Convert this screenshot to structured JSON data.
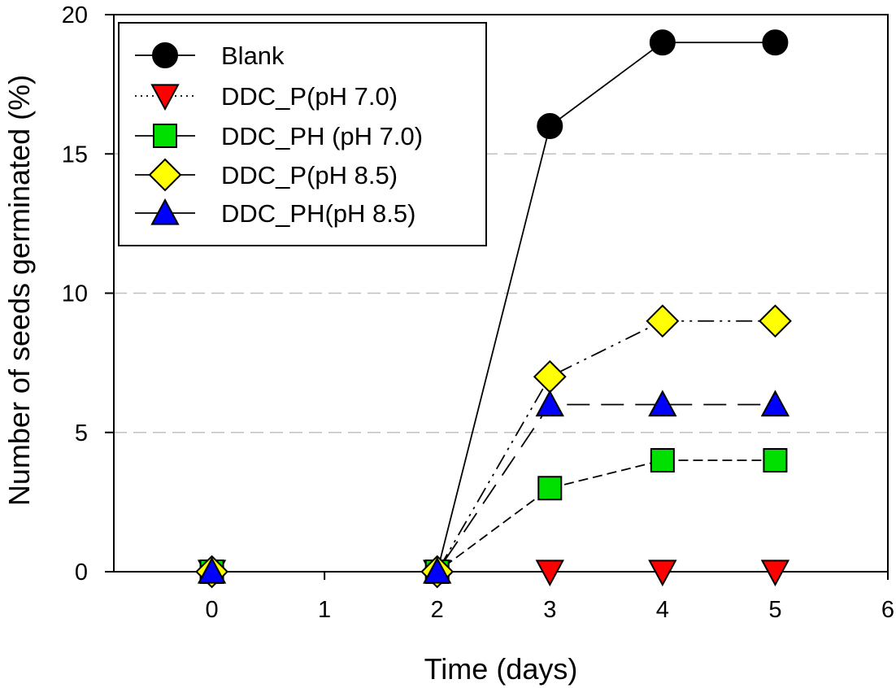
{
  "chart_data": {
    "type": "line",
    "title": "",
    "xlabel": "Time (days)",
    "ylabel": "Number of seeds germinated (%)",
    "xlim": [
      -0.87,
      6
    ],
    "ylim": [
      0,
      20
    ],
    "xticks": [
      0,
      1,
      2,
      3,
      4,
      5,
      6
    ],
    "xtick_labels": [
      "0",
      "1",
      "2",
      "3",
      "4",
      "5",
      "6"
    ],
    "yticks": [
      0,
      5,
      10,
      15,
      20
    ],
    "ytick_labels": [
      "0",
      "5",
      "10",
      "15",
      "20"
    ],
    "grid": {
      "y": true,
      "x": false,
      "lines_at": [
        5,
        10,
        15
      ],
      "style": "dashed",
      "color": "#c0c0c0"
    },
    "legend_placement": "top-left",
    "x": [
      0,
      2,
      3,
      4,
      5
    ],
    "series": [
      {
        "name": "Blank",
        "values": [
          0,
          0,
          16,
          19,
          19
        ],
        "marker": "circle",
        "color": "#000000",
        "line": "solid"
      },
      {
        "name": "DDC_P(pH 7.0)",
        "values": [
          0,
          0,
          0,
          0,
          0
        ],
        "marker": "triangle-down",
        "color": "#ff0000",
        "line": "dotted"
      },
      {
        "name": "DDC_PH (pH 7.0)",
        "values": [
          0,
          0,
          3,
          4,
          4
        ],
        "marker": "square",
        "color": "#00e000",
        "line": "dashed"
      },
      {
        "name": "DDC_P(pH 8.5)",
        "values": [
          0,
          0,
          7,
          9,
          9
        ],
        "marker": "diamond",
        "color": "#ffff00",
        "line": "dash-dot-dot"
      },
      {
        "name": "DDC_PH(pH 8.5)",
        "values": [
          0,
          0,
          6,
          6,
          6
        ],
        "marker": "triangle-up",
        "color": "#0000ff",
        "line": "long-dash"
      }
    ]
  }
}
